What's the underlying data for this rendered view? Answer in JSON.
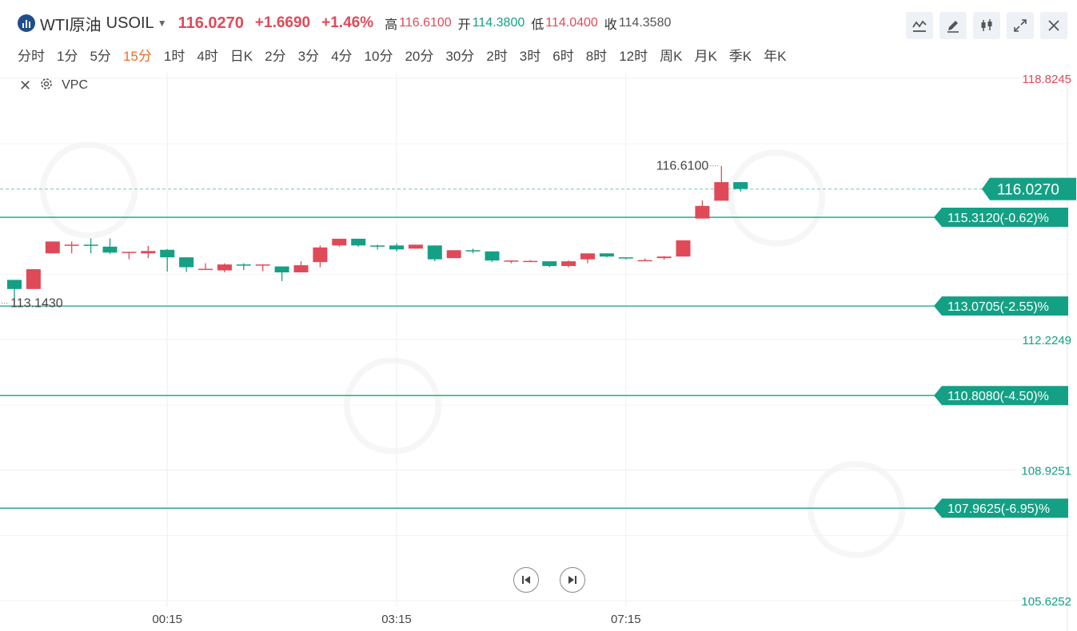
{
  "header": {
    "symbol_name": "WTI原油",
    "symbol_code": "USOIL",
    "price": "116.0270",
    "change": "+1.6690",
    "change_pct": "+1.46%",
    "high_label": "高",
    "high": "116.6100",
    "open_label": "开",
    "open": "114.3800",
    "low_label": "低",
    "low": "114.0400",
    "close_label": "收",
    "close": "114.3580"
  },
  "tools": [
    "line-chart-icon",
    "pencil-icon",
    "candlestick-icon",
    "fullscreen-icon",
    "close-icon"
  ],
  "periods": [
    "分时",
    "1分",
    "5分",
    "15分",
    "1时",
    "4时",
    "日K",
    "2分",
    "3分",
    "4分",
    "10分",
    "20分",
    "30分",
    "2时",
    "3时",
    "6时",
    "8时",
    "12时",
    "周K",
    "月K",
    "季K",
    "年K"
  ],
  "active_period": "15分",
  "indicator": {
    "name": "VPC"
  },
  "colors": {
    "up": "#e04a58",
    "down": "#14a085",
    "accent": "#ef6c2a"
  },
  "chart_data": {
    "type": "candlestick",
    "x_ticks": [
      "00:15",
      "03:15",
      "07:15"
    ],
    "x_tick_index": [
      8,
      20,
      32
    ],
    "y_axis_labels": [
      "118.8245",
      "112.2249",
      "108.9251",
      "105.6252"
    ],
    "y_axis_values": [
      118.8245,
      112.2249,
      108.9251,
      105.6252
    ],
    "ylim": [
      105.6252,
      118.8245
    ],
    "current_price": {
      "label": "116.0270",
      "value": 116.027
    },
    "high_annotation": {
      "label": "116.6100",
      "value": 116.61
    },
    "low_annotation": {
      "label": "113.1430",
      "value": 113.143
    },
    "levels": [
      {
        "label": "115.3120(-0.62)%",
        "value": 115.312
      },
      {
        "label": "113.0705(-2.55)%",
        "value": 113.0705
      },
      {
        "label": "110.8080(-4.50)%",
        "value": 110.808
      },
      {
        "label": "107.9625(-6.95)%",
        "value": 107.9625
      }
    ],
    "candles": [
      {
        "o": 113.73,
        "h": 113.73,
        "l": 113.14,
        "c": 113.5
      },
      {
        "o": 113.5,
        "h": 114.0,
        "l": 113.5,
        "c": 114.0
      },
      {
        "o": 114.4,
        "h": 114.7,
        "l": 114.4,
        "c": 114.7
      },
      {
        "o": 114.62,
        "h": 114.7,
        "l": 114.4,
        "c": 114.62
      },
      {
        "o": 114.62,
        "h": 114.78,
        "l": 114.4,
        "c": 114.59
      },
      {
        "o": 114.57,
        "h": 114.78,
        "l": 114.38,
        "c": 114.42
      },
      {
        "o": 114.44,
        "h": 114.44,
        "l": 114.25,
        "c": 114.44
      },
      {
        "o": 114.4,
        "h": 114.59,
        "l": 114.28,
        "c": 114.46
      },
      {
        "o": 114.49,
        "h": 114.51,
        "l": 113.94,
        "c": 114.3
      },
      {
        "o": 114.3,
        "h": 114.3,
        "l": 113.93,
        "c": 114.05
      },
      {
        "o": 114.01,
        "h": 114.15,
        "l": 113.98,
        "c": 114.01
      },
      {
        "o": 113.97,
        "h": 114.15,
        "l": 113.92,
        "c": 114.12
      },
      {
        "o": 114.12,
        "h": 114.15,
        "l": 113.98,
        "c": 114.1
      },
      {
        "o": 114.12,
        "h": 114.12,
        "l": 113.95,
        "c": 114.12
      },
      {
        "o": 114.07,
        "h": 114.07,
        "l": 113.7,
        "c": 113.92
      },
      {
        "o": 113.92,
        "h": 114.2,
        "l": 113.92,
        "c": 114.1
      },
      {
        "o": 114.18,
        "h": 114.6,
        "l": 114.05,
        "c": 114.55
      },
      {
        "o": 114.6,
        "h": 114.77,
        "l": 114.57,
        "c": 114.77
      },
      {
        "o": 114.77,
        "h": 114.77,
        "l": 114.57,
        "c": 114.6
      },
      {
        "o": 114.6,
        "h": 114.62,
        "l": 114.5,
        "c": 114.58
      },
      {
        "o": 114.6,
        "h": 114.65,
        "l": 114.45,
        "c": 114.5
      },
      {
        "o": 114.52,
        "h": 114.62,
        "l": 114.52,
        "c": 114.62
      },
      {
        "o": 114.6,
        "h": 114.6,
        "l": 114.2,
        "c": 114.25
      },
      {
        "o": 114.28,
        "h": 114.48,
        "l": 114.28,
        "c": 114.48
      },
      {
        "o": 114.48,
        "h": 114.52,
        "l": 114.4,
        "c": 114.46
      },
      {
        "o": 114.45,
        "h": 114.45,
        "l": 114.18,
        "c": 114.22
      },
      {
        "o": 114.2,
        "h": 114.22,
        "l": 114.15,
        "c": 114.22
      },
      {
        "o": 114.2,
        "h": 114.23,
        "l": 114.19,
        "c": 114.21
      },
      {
        "o": 114.2,
        "h": 114.2,
        "l": 114.05,
        "c": 114.08
      },
      {
        "o": 114.08,
        "h": 114.22,
        "l": 114.05,
        "c": 114.2
      },
      {
        "o": 114.25,
        "h": 114.4,
        "l": 114.15,
        "c": 114.4
      },
      {
        "o": 114.4,
        "h": 114.4,
        "l": 114.3,
        "c": 114.32
      },
      {
        "o": 114.3,
        "h": 114.3,
        "l": 114.25,
        "c": 114.28
      },
      {
        "o": 114.23,
        "h": 114.27,
        "l": 114.22,
        "c": 114.23
      },
      {
        "o": 114.28,
        "h": 114.33,
        "l": 114.24,
        "c": 114.32
      },
      {
        "o": 114.32,
        "h": 114.73,
        "l": 114.32,
        "c": 114.73
      },
      {
        "o": 115.28,
        "h": 115.74,
        "l": 115.28,
        "c": 115.6
      },
      {
        "o": 115.73,
        "h": 116.61,
        "l": 115.73,
        "c": 116.2
      },
      {
        "o": 116.2,
        "h": 116.2,
        "l": 115.96,
        "c": 116.027
      }
    ]
  }
}
